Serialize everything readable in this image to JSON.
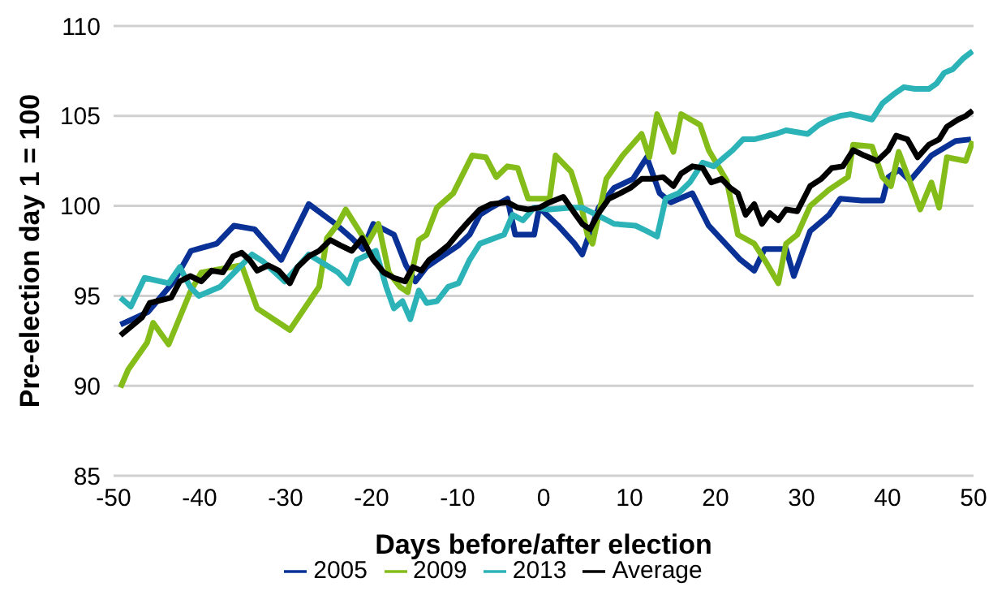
{
  "chart_data": {
    "type": "line",
    "xlabel": "Days before/after election",
    "ylabel": "Pre-election day 1 = 100",
    "xlim": [
      -50,
      50
    ],
    "xticks": [
      -50,
      -40,
      -30,
      -20,
      -10,
      0,
      10,
      20,
      30,
      40,
      50
    ],
    "ylim": [
      85,
      110
    ],
    "yticks": [
      85,
      90,
      95,
      100,
      105,
      110
    ],
    "grid": "y",
    "legend": "bottom",
    "series": [
      {
        "name": "2005",
        "color": "#0a3296",
        "x": [
          -49.2,
          -46,
          -43,
          -41,
          -38,
          -36,
          -33.6,
          -30.5,
          -27.3,
          -24.2,
          -22.3,
          -21,
          -19.8,
          -17.4,
          -16,
          -14.9,
          -13.6,
          -12.4,
          -9.9,
          -8.6,
          -7.4,
          -6.1,
          -4.2,
          -3.3,
          -1.1,
          -0.5,
          1.7,
          3.6,
          4.5,
          6.4,
          8.2,
          10.4,
          12,
          13.5,
          14.8,
          17.3,
          19.2,
          22.9,
          24.5,
          25.7,
          28.2,
          29.1,
          31,
          33.2,
          34.5,
          37,
          39.4,
          40.1,
          41.3,
          42.6,
          45.1,
          47.9,
          49.7
        ],
        "values": [
          93.4,
          94.1,
          95.8,
          97.5,
          97.9,
          98.9,
          98.7,
          97,
          100.1,
          99,
          98.2,
          97.6,
          99,
          98.4,
          96.7,
          95.8,
          96.6,
          97,
          97.8,
          98.4,
          99.5,
          99.9,
          100.4,
          98.4,
          98.4,
          99.9,
          98.9,
          97.9,
          97.3,
          99.9,
          101,
          101.5,
          102.7,
          100.7,
          100.2,
          100.7,
          98.9,
          97,
          96.4,
          97.6,
          97.6,
          96.1,
          98.6,
          99.5,
          100.4,
          100.3,
          100.3,
          101.6,
          102,
          101.4,
          102.8,
          103.6,
          103.7
        ]
      },
      {
        "name": "2009",
        "color": "#84bd1a",
        "x": [
          -49.2,
          -48.3,
          -46.1,
          -45.4,
          -43.6,
          -41.1,
          -39.8,
          -35.1,
          -33.3,
          -29.5,
          -26.1,
          -25.2,
          -23.9,
          -23,
          -20.5,
          -19.2,
          -18,
          -16.7,
          -15.8,
          -14.5,
          -13.6,
          -12.4,
          -10.5,
          -8.3,
          -6.7,
          -5.5,
          -4.2,
          -3,
          -1.8,
          0.7,
          1.4,
          3.2,
          4.2,
          5.1,
          5.7,
          7.3,
          9.2,
          11.4,
          12.3,
          13.2,
          15.1,
          16,
          18.2,
          19.2,
          21.3,
          22.6,
          24.5,
          25.7,
          27.3,
          28.2,
          29.5,
          31,
          33.2,
          35.4,
          36,
          38.2,
          39.4,
          40.4,
          41.3,
          43.8,
          45.1,
          46,
          46.9,
          49.1,
          49.9
        ],
        "values": [
          89.9,
          90.9,
          92.4,
          93.5,
          92.3,
          95.2,
          96.3,
          96.7,
          94.3,
          93.1,
          95.5,
          98.2,
          99,
          99.8,
          97.9,
          99,
          96.3,
          95.5,
          95.2,
          98.1,
          98.4,
          99.9,
          100.7,
          102.8,
          102.7,
          101.6,
          102.2,
          102.1,
          100.4,
          100.4,
          102.8,
          101.9,
          100.4,
          98.4,
          97.9,
          101.5,
          102.8,
          104,
          102.7,
          105.1,
          103,
          105.1,
          104.5,
          103.1,
          101.4,
          98.4,
          97.9,
          97,
          95.7,
          97.9,
          98.4,
          100,
          100.9,
          101.6,
          103.4,
          103.3,
          101.6,
          101.1,
          103,
          99.8,
          101.3,
          99.9,
          102.7,
          102.5,
          103.6
        ]
      },
      {
        "name": "2013",
        "color": "#2bb3b8",
        "x": [
          -49.2,
          -48,
          -46.4,
          -43.6,
          -42.3,
          -41.1,
          -40.1,
          -37.6,
          -33.9,
          -32.6,
          -30.1,
          -28.6,
          -27.3,
          -23.9,
          -22.7,
          -21.7,
          -19.5,
          -18.3,
          -17.4,
          -16.4,
          -15.5,
          -14.5,
          -13.6,
          -12.4,
          -11.1,
          -9.9,
          -8.6,
          -7.4,
          -4.6,
          -3.6,
          -2.4,
          -1.1,
          0.7,
          3.2,
          4.5,
          7,
          8.2,
          10.7,
          12,
          13.2,
          14.2,
          15.7,
          17,
          18.5,
          19.8,
          21,
          22,
          23.2,
          24.5,
          27,
          28.2,
          30.7,
          32,
          33.2,
          34.5,
          35.7,
          38.2,
          39.4,
          40.7,
          41.9,
          43.2,
          44.8,
          45.7,
          46.6,
          47.6,
          48.8,
          49.9
        ],
        "values": [
          94.9,
          94.4,
          96,
          95.7,
          96.6,
          95.5,
          95,
          95.5,
          97.3,
          96.9,
          95.8,
          96.6,
          97.3,
          96.3,
          95.7,
          97,
          97.5,
          95.5,
          94.3,
          94.7,
          93.7,
          95.3,
          94.6,
          94.7,
          95.5,
          95.7,
          97,
          97.9,
          98.4,
          99.5,
          99.2,
          99.9,
          99.8,
          99.9,
          99.9,
          99.3,
          99,
          98.9,
          98.6,
          98.3,
          100.4,
          100.7,
          101.3,
          102.4,
          102.2,
          102.7,
          103.1,
          103.7,
          103.7,
          104,
          104.2,
          104,
          104.5,
          104.8,
          105,
          105.1,
          104.8,
          105.7,
          106.2,
          106.6,
          106.5,
          106.5,
          106.8,
          107.4,
          107.6,
          108.2,
          108.6
        ]
      },
      {
        "name": "Average",
        "color": "#000000",
        "x": [
          -49.2,
          -46.7,
          -45.8,
          -43.3,
          -42.3,
          -41.1,
          -39.8,
          -38.6,
          -37.3,
          -36.1,
          -35.1,
          -34.2,
          -33.3,
          -32,
          -30.8,
          -29.5,
          -28.6,
          -27.3,
          -26.1,
          -24.8,
          -23.6,
          -22.3,
          -21.1,
          -19.8,
          -18.6,
          -17.4,
          -16.1,
          -15.2,
          -14.2,
          -13.3,
          -12.4,
          -11.1,
          -9.9,
          -8.6,
          -7.4,
          -6.1,
          -4.2,
          -3,
          -1.8,
          -0.5,
          0.7,
          2.3,
          3.6,
          4.5,
          5.4,
          6.4,
          7.6,
          8.9,
          10.1,
          11.4,
          12.6,
          13.9,
          15.1,
          16,
          17.3,
          18.5,
          19.5,
          20.7,
          21.7,
          22.6,
          23.5,
          24.5,
          25.4,
          26.3,
          27.3,
          28.2,
          29.5,
          31,
          32.3,
          33.5,
          34.8,
          36,
          37.3,
          38.8,
          40.1,
          41,
          42.3,
          43.5,
          44.8,
          46,
          46.9,
          48.2,
          49.1,
          49.9
        ],
        "values": [
          92.8,
          93.8,
          94.6,
          94.9,
          95.8,
          96.1,
          95.8,
          96.4,
          96.3,
          97.2,
          97.4,
          97,
          96.4,
          96.7,
          96.4,
          95.7,
          96.6,
          97.2,
          97.5,
          98.1,
          97.8,
          97.5,
          98.2,
          97,
          96.3,
          96,
          95.8,
          96.6,
          96.4,
          97,
          97.3,
          97.8,
          98.5,
          99.2,
          99.8,
          100.1,
          100.2,
          99.9,
          99.8,
          99.9,
          100.2,
          100.5,
          99.6,
          99,
          98.7,
          99.6,
          100.4,
          100.7,
          101,
          101.5,
          101.5,
          101.6,
          101.1,
          101.8,
          102.2,
          102.1,
          101.3,
          101.5,
          101,
          100.7,
          99.5,
          100.1,
          99,
          99.6,
          99.2,
          99.8,
          99.7,
          101.1,
          101.5,
          102.1,
          102.2,
          103.1,
          102.8,
          102.5,
          103.1,
          103.9,
          103.7,
          102.7,
          103.4,
          103.7,
          104.4,
          104.8,
          105,
          105.3
        ]
      }
    ]
  }
}
